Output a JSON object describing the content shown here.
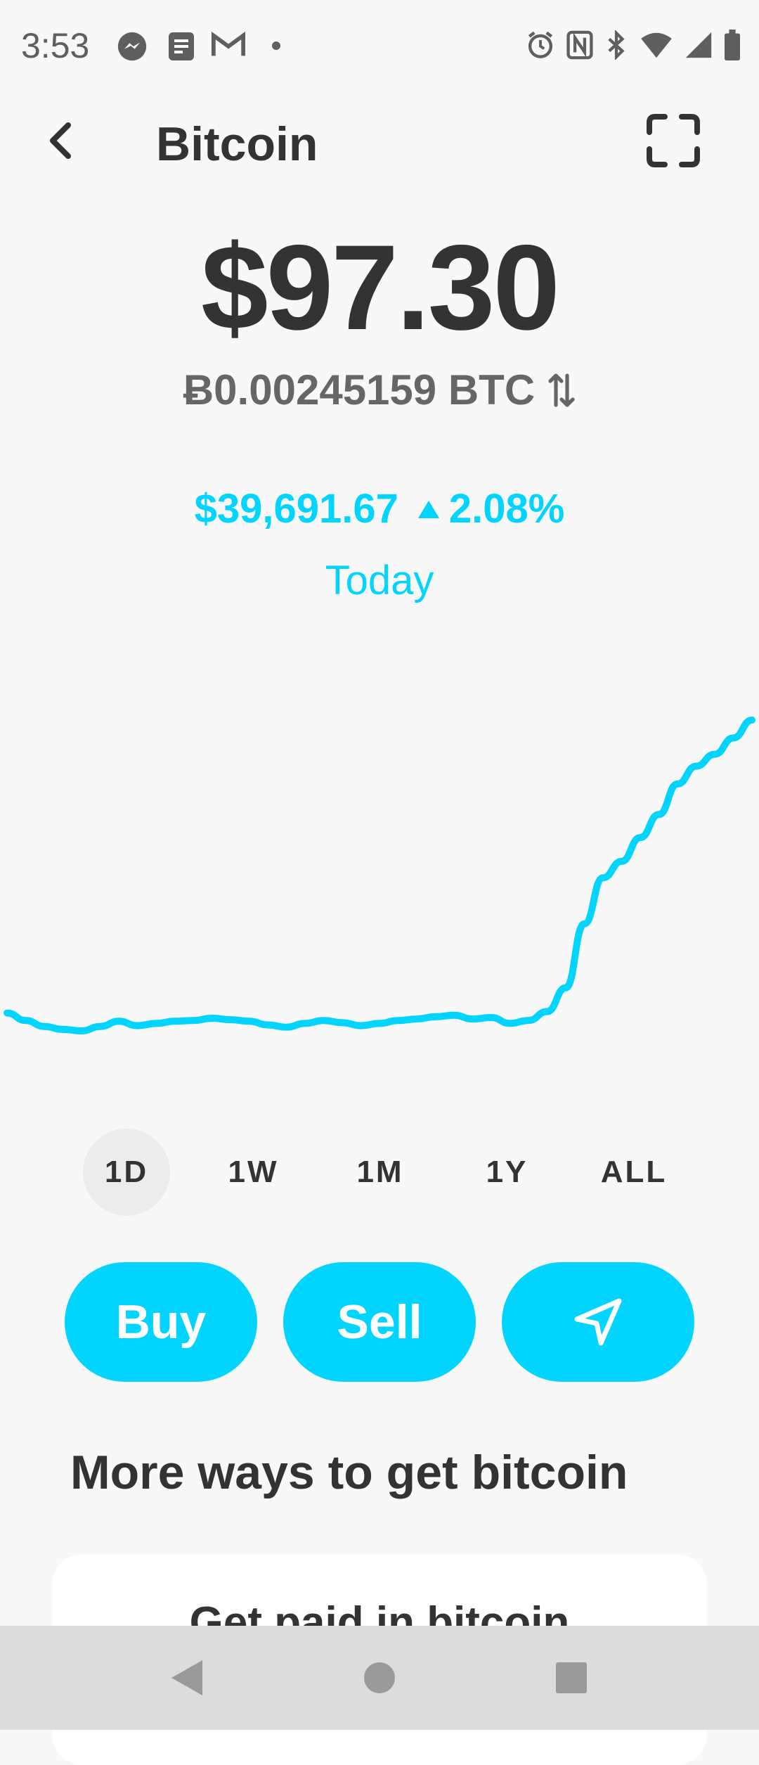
{
  "status_bar": {
    "time": "3:53"
  },
  "header": {
    "title": "Bitcoin"
  },
  "balance": {
    "usd": "$97.30",
    "btc": "Ƀ0.00245159 BTC"
  },
  "price": {
    "value": "$39,691.67",
    "change": "2.08%",
    "period": "Today"
  },
  "chart_data": {
    "type": "line",
    "x": [
      0,
      1,
      2,
      3,
      4,
      5,
      6,
      7,
      8,
      9,
      10,
      11,
      12,
      13,
      14,
      15,
      16,
      17,
      18,
      19,
      20,
      21,
      22,
      23,
      24,
      25,
      26,
      27,
      28,
      29,
      30,
      31,
      32,
      33,
      34,
      35,
      36,
      37,
      38,
      39,
      40
    ],
    "values": [
      0.38,
      0.28,
      0.2,
      0.16,
      0.14,
      0.2,
      0.27,
      0.21,
      0.24,
      0.27,
      0.28,
      0.31,
      0.29,
      0.27,
      0.22,
      0.19,
      0.24,
      0.28,
      0.25,
      0.21,
      0.24,
      0.28,
      0.3,
      0.33,
      0.35,
      0.3,
      0.32,
      0.24,
      0.28,
      0.4,
      0.72,
      1.58,
      2.2,
      2.42,
      2.74,
      3.05,
      3.46,
      3.7,
      3.86,
      4.08,
      4.32
    ],
    "color": "#00d4ff"
  },
  "ranges": [
    "1D",
    "1W",
    "1M",
    "1Y",
    "ALL"
  ],
  "active_range": "1D",
  "actions": {
    "buy": "Buy",
    "sell": "Sell",
    "send_icon": "send-icon"
  },
  "more": {
    "title": "More ways to get bitcoin",
    "card_title": "Get paid in bitcoin"
  },
  "colors": {
    "accent": "#00d4ff",
    "text": "#333333",
    "background": "#f8f8f8"
  }
}
